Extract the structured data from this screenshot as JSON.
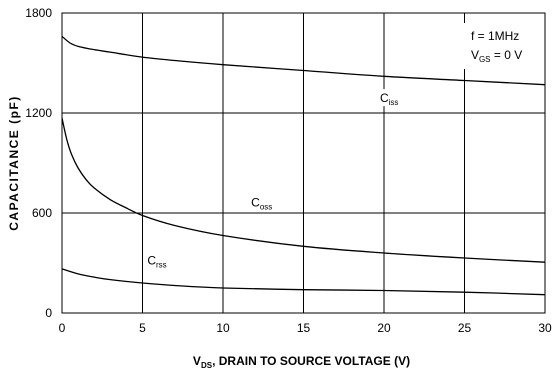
{
  "chart_data": {
    "type": "line",
    "xlabel": {
      "main": "V",
      "sub": "DS",
      "rest": ", DRAIN TO SOURCE VOLTAGE (V)"
    },
    "ylabel": "CAPACITANCE (pF)",
    "xlim": [
      0,
      30
    ],
    "ylim": [
      0,
      1800
    ],
    "xticks": [
      0,
      5,
      10,
      15,
      20,
      25,
      30
    ],
    "yticks": [
      0,
      600,
      1200,
      1800
    ],
    "grid": true,
    "annotations": [
      {
        "main": "f = 1MHz",
        "sub": "",
        "rest": ""
      },
      {
        "main": "V",
        "sub": "GS",
        "rest": " = 0 V"
      }
    ],
    "series": [
      {
        "name": {
          "main": "C",
          "sub": "iss"
        },
        "x": [
          0,
          0.5,
          1,
          2,
          3,
          5,
          7,
          10,
          15,
          20,
          25,
          30
        ],
        "y": [
          1660,
          1620,
          1600,
          1580,
          1565,
          1535,
          1515,
          1490,
          1455,
          1420,
          1395,
          1370
        ]
      },
      {
        "name": {
          "main": "C",
          "sub": "oss"
        },
        "x": [
          0,
          0.3,
          0.6,
          1,
          1.5,
          2,
          3,
          4,
          5,
          7,
          10,
          15,
          20,
          25,
          30
        ],
        "y": [
          1170,
          1040,
          950,
          870,
          800,
          750,
          680,
          630,
          585,
          525,
          465,
          400,
          360,
          330,
          305
        ]
      },
      {
        "name": {
          "main": "C",
          "sub": "rss"
        },
        "x": [
          0,
          1,
          2,
          3,
          5,
          7,
          10,
          15,
          20,
          25,
          30
        ],
        "y": [
          265,
          235,
          215,
          200,
          180,
          165,
          150,
          140,
          135,
          125,
          110
        ]
      }
    ]
  }
}
